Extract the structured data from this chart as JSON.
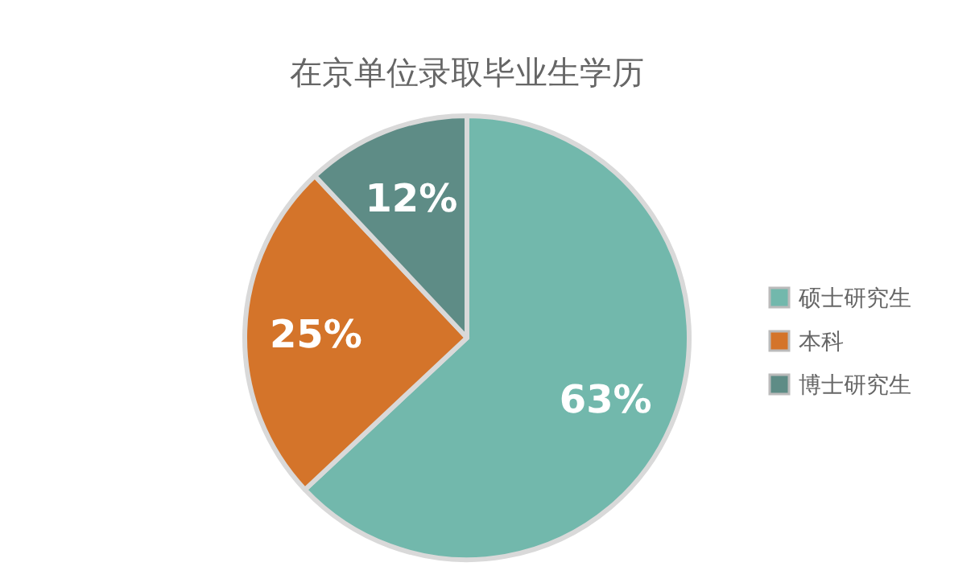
{
  "chart_data": {
    "type": "pie",
    "title": "在京单位录取毕业生学历",
    "categories": [
      "硕士研究生",
      "本科",
      "博士研究生"
    ],
    "values": [
      63,
      25,
      12
    ],
    "colors": [
      "#72b8ac",
      "#d4742a",
      "#5e8c86"
    ],
    "value_labels": [
      "63%",
      "25%",
      "12%"
    ],
    "legend": "right"
  }
}
